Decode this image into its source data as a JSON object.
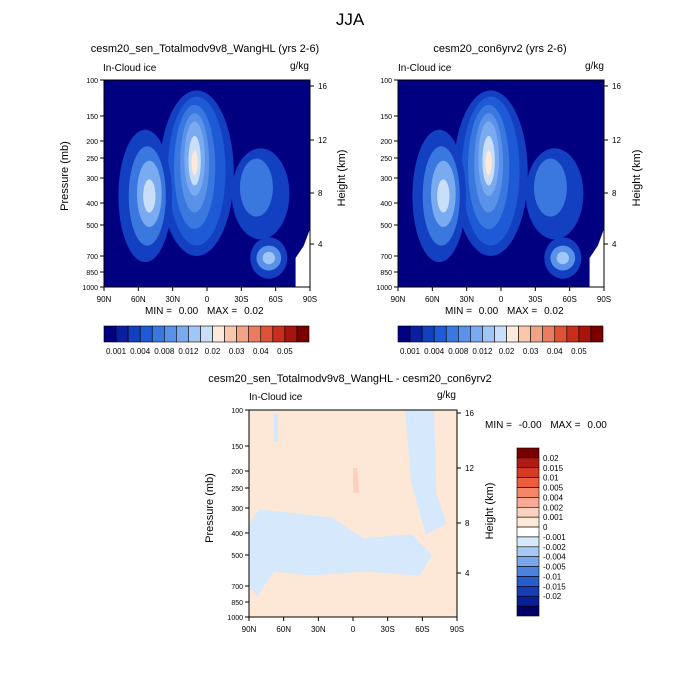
{
  "title": "JJA",
  "colors": {
    "field_scale": [
      "#000080",
      "#0a1fa0",
      "#1240c0",
      "#1e5ad6",
      "#3a78e0",
      "#5a92ea",
      "#7aaaf0",
      "#a0c6f8",
      "#c9def8",
      "#fde9d9",
      "#f8c7ae",
      "#f3a385",
      "#ea7c60",
      "#de5238",
      "#c92d1b",
      "#a8140c",
      "#7a0000"
    ],
    "diff_scale": [
      "#7a0000",
      "#b01a10",
      "#d73a22",
      "#ec5e3c",
      "#f5866a",
      "#f7ab95",
      "#fbd2c1",
      "#fde7d6",
      "#ffffff",
      "#d6e8fb",
      "#a6c8f3",
      "#7aa7ec",
      "#4a82e0",
      "#2a5dcc",
      "#183db2",
      "#0a1f96",
      "#000066"
    ]
  },
  "chart_data": [
    {
      "type": "heatmap",
      "panel": "top-left",
      "title": "cesm20_sen_Totalmodv9v8_WangHL (yrs 2-6)",
      "variable": "In-Cloud ice",
      "units": "g/kg",
      "ylabel": "Pressure (mb)",
      "ylabel_right": "Height (km)",
      "x_ticks": [
        "90N",
        "60N",
        "30N",
        "0",
        "30S",
        "60S",
        "90S"
      ],
      "y_ticks": [
        "100",
        "150",
        "200",
        "250",
        "300",
        "400",
        "500",
        "700",
        "850",
        "1000"
      ],
      "y_right_ticks": [
        "16",
        "12",
        "8",
        "4"
      ],
      "min_label": "MIN =",
      "min_value": "0.00",
      "max_label": "MAX =",
      "max_value": "0.02",
      "min": 0.0,
      "max": 0.02,
      "colorbar_ticks": [
        "0.001",
        "0.004",
        "0.008",
        "0.012",
        "0.02",
        "0.03",
        "0.04",
        "0.05"
      ],
      "colorbar_orientation": "horizontal"
    },
    {
      "type": "heatmap",
      "panel": "top-right",
      "title": "cesm20_con6yrv2 (yrs 2-6)",
      "variable": "In-Cloud ice",
      "units": "g/kg",
      "ylabel": "Pressure (mb)",
      "ylabel_right": "Height (km)",
      "x_ticks": [
        "90N",
        "60N",
        "30N",
        "0",
        "30S",
        "60S",
        "90S"
      ],
      "y_ticks": [
        "100",
        "150",
        "200",
        "250",
        "300",
        "400",
        "500",
        "700",
        "850",
        "1000"
      ],
      "y_right_ticks": [
        "16",
        "12",
        "8",
        "4"
      ],
      "min_label": "MIN =",
      "min_value": "0.00",
      "max_label": "MAX =",
      "max_value": "0.02",
      "min": 0.0,
      "max": 0.02,
      "colorbar_ticks": [
        "0.001",
        "0.004",
        "0.008",
        "0.012",
        "0.02",
        "0.03",
        "0.04",
        "0.05"
      ],
      "colorbar_orientation": "horizontal"
    },
    {
      "type": "heatmap",
      "panel": "bottom",
      "title": "cesm20_sen_Totalmodv9v8_WangHL - cesm20_con6yrv2",
      "variable": "In-Cloud ice",
      "units": "g/kg",
      "ylabel": "Pressure (mb)",
      "ylabel_right": "Height (km)",
      "x_ticks": [
        "90N",
        "60N",
        "30N",
        "0",
        "30S",
        "60S",
        "90S"
      ],
      "y_ticks": [
        "100",
        "150",
        "200",
        "250",
        "300",
        "400",
        "500",
        "700",
        "850",
        "1000"
      ],
      "y_right_ticks": [
        "16",
        "12",
        "8",
        "4"
      ],
      "min_label": "MIN =",
      "min_value": "-0.00",
      "max_label": "MAX =",
      "max_value": "0.00",
      "min": -0.0,
      "max": 0.0,
      "colorbar_ticks": [
        "0.02",
        "0.015",
        "0.01",
        "0.005",
        "0.004",
        "0.002",
        "0.001",
        "0",
        "-0.001",
        "-0.002",
        "-0.004",
        "-0.005",
        "-0.01",
        "-0.015",
        "-0.02"
      ],
      "colorbar_orientation": "vertical"
    }
  ]
}
